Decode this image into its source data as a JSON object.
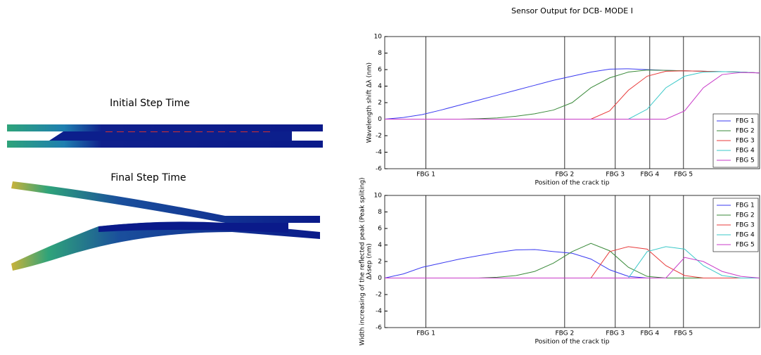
{
  "figure": {
    "initial_label": "Initial Step Time",
    "final_label": "Final Step Time"
  },
  "chart_data": [
    {
      "type": "line",
      "title": "Sensor Output for DCB- MODE I",
      "xlabel": "Position of the crack tip",
      "ylabel": [
        "Wavelength shift Δλ (nm)"
      ],
      "x": [
        0,
        5,
        10,
        15,
        20,
        25,
        30,
        35,
        40,
        45,
        50,
        55,
        60,
        65,
        70,
        75,
        80,
        85,
        90,
        95,
        100
      ],
      "xlim": [
        0,
        100
      ],
      "ylim": [
        -6,
        10
      ],
      "yticks": [
        -6,
        -4,
        -2,
        0,
        2,
        4,
        6,
        8,
        10
      ],
      "xticks": [
        {
          "value": 11,
          "label": "FBG 1"
        },
        {
          "value": 48,
          "label": "FBG 2"
        },
        {
          "value": 61.5,
          "label": "FBG 3"
        },
        {
          "value": 70.7,
          "label": "FBG 4"
        },
        {
          "value": 79.7,
          "label": "FBG 5"
        }
      ],
      "grid": "x",
      "legend": "lower right",
      "series": [
        {
          "name": "FBG 1",
          "color": "#3a3af0",
          "values": [
            0,
            0.2,
            0.55,
            1.1,
            1.7,
            2.3,
            2.9,
            3.5,
            4.1,
            4.7,
            5.2,
            5.7,
            6.05,
            6.1,
            6.0,
            5.9,
            5.85,
            5.8,
            5.75,
            5.7,
            5.6
          ]
        },
        {
          "name": "FBG 2",
          "color": "#3a8a3a",
          "values": [
            0,
            0,
            0,
            0,
            0,
            0.05,
            0.15,
            0.35,
            0.65,
            1.1,
            2.0,
            3.8,
            5.0,
            5.7,
            5.95,
            5.9,
            5.85,
            5.8,
            5.75,
            5.7,
            5.6
          ]
        },
        {
          "name": "FBG 3",
          "color": "#e83a3a",
          "values": [
            0,
            0,
            0,
            0,
            0,
            0,
            0,
            0,
            0,
            0,
            0,
            0,
            1.0,
            3.5,
            5.2,
            5.8,
            5.85,
            5.8,
            5.75,
            5.7,
            5.6
          ]
        },
        {
          "name": "FBG 4",
          "color": "#3ac8c8",
          "values": [
            0,
            0,
            0,
            0,
            0,
            0,
            0,
            0,
            0,
            0,
            0,
            0,
            0,
            0,
            1.2,
            3.8,
            5.2,
            5.7,
            5.75,
            5.7,
            5.6
          ]
        },
        {
          "name": "FBG 5",
          "color": "#c83ac8",
          "values": [
            0,
            0,
            0,
            0,
            0,
            0,
            0,
            0,
            0,
            0,
            0,
            0,
            0,
            0,
            0,
            0,
            1.0,
            3.8,
            5.4,
            5.65,
            5.6
          ]
        }
      ]
    },
    {
      "type": "line",
      "xlabel": "Position of the crack tip",
      "ylabel": [
        "Width increasing of the reflected peak (Peak spliting)",
        "Δλsep (nm)"
      ],
      "x": [
        0,
        5,
        10,
        15,
        20,
        25,
        30,
        35,
        40,
        45,
        50,
        55,
        60,
        65,
        70,
        75,
        80,
        85,
        90,
        95,
        100
      ],
      "xlim": [
        0,
        100
      ],
      "ylim": [
        -6,
        10
      ],
      "yticks": [
        -6,
        -4,
        -2,
        0,
        2,
        4,
        6,
        8,
        10
      ],
      "xticks": [
        {
          "value": 11,
          "label": "FBG 1"
        },
        {
          "value": 48,
          "label": "FBG 2"
        },
        {
          "value": 61.5,
          "label": "FBG 3"
        },
        {
          "value": 70.7,
          "label": "FBG 4"
        },
        {
          "value": 79.7,
          "label": "FBG 5"
        }
      ],
      "grid": "x",
      "legend": "upper right",
      "series": [
        {
          "name": "FBG 1",
          "color": "#3a3af0",
          "values": [
            0,
            0.5,
            1.3,
            1.8,
            2.3,
            2.7,
            3.1,
            3.4,
            3.45,
            3.2,
            3.0,
            2.3,
            1.0,
            0.2,
            0,
            0,
            0,
            0,
            0,
            0,
            0
          ]
        },
        {
          "name": "FBG 2",
          "color": "#3a8a3a",
          "values": [
            0,
            0,
            0,
            0,
            0,
            0,
            0.1,
            0.3,
            0.8,
            1.8,
            3.2,
            4.2,
            3.3,
            1.3,
            0.2,
            0,
            0,
            0,
            0,
            0,
            0
          ]
        },
        {
          "name": "FBG 3",
          "color": "#e83a3a",
          "values": [
            0,
            0,
            0,
            0,
            0,
            0,
            0,
            0,
            0,
            0,
            0,
            0,
            3.2,
            3.8,
            3.5,
            1.5,
            0.3,
            0,
            0,
            0,
            0
          ]
        },
        {
          "name": "FBG 4",
          "color": "#3ac8c8",
          "values": [
            0,
            0,
            0,
            0,
            0,
            0,
            0,
            0,
            0,
            0,
            0,
            0,
            0,
            0,
            3.2,
            3.8,
            3.5,
            1.5,
            0.3,
            0,
            0
          ]
        },
        {
          "name": "FBG 5",
          "color": "#c83ac8",
          "values": [
            0,
            0,
            0,
            0,
            0,
            0,
            0,
            0,
            0,
            0,
            0,
            0,
            0,
            0,
            0,
            0,
            2.5,
            2.0,
            0.8,
            0.2,
            0
          ]
        }
      ]
    }
  ]
}
